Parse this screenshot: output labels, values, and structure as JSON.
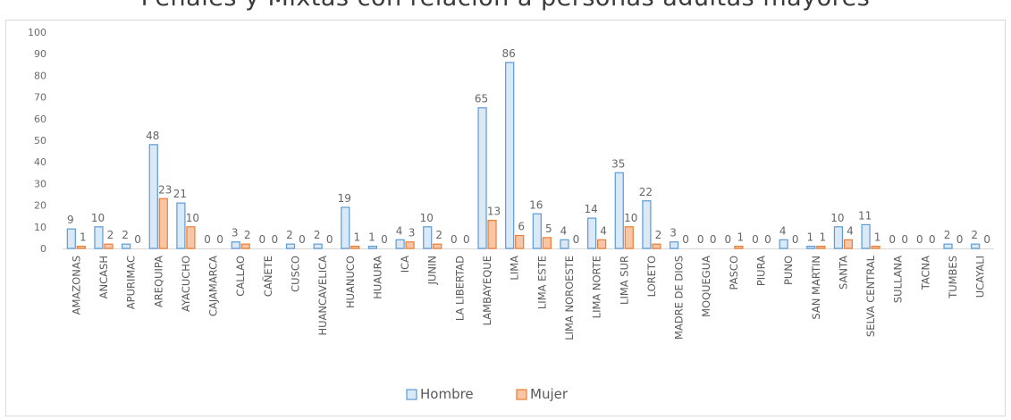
{
  "chart_data": {
    "type": "bar",
    "title": "Penales y Mixtas con relación a personas adultas mayores",
    "categories": [
      "AMAZONAS",
      "ANCASH",
      "APURIMAC",
      "AREQUIPA",
      "AYACUCHO",
      "CAJAMARCA",
      "CALLAO",
      "CAÑETE",
      "CUSCO",
      "HUANCAVELICA",
      "HUANUCO",
      "HUAURA",
      "ICA",
      "JUNIN",
      "LA LIBERTAD",
      "LAMBAYEQUE",
      "LIMA",
      "LIMA ESTE",
      "LIMA NOROESTE",
      "LIMA NORTE",
      "LIMA SUR",
      "LORETO",
      "MADRE DE DIOS",
      "MOQUEGUA",
      "PASCO",
      "PIURA",
      "PUNO",
      "SAN MARTIN",
      "SANTA",
      "SELVA CENTRAL",
      "SULLANA",
      "TACNA",
      "TUMBES",
      "UCAYALI"
    ],
    "series": [
      {
        "name": "Hombre",
        "color": "#5b9bd5",
        "fill": "#dbe8f6",
        "values": [
          9,
          10,
          2,
          48,
          21,
          0,
          3,
          0,
          2,
          2,
          19,
          1,
          4,
          10,
          0,
          65,
          86,
          16,
          4,
          14,
          35,
          22,
          3,
          0,
          0,
          0,
          4,
          1,
          10,
          11,
          0,
          0,
          2,
          2
        ]
      },
      {
        "name": "Mujer",
        "color": "#ed7d31",
        "fill": "#f6c6a6",
        "values": [
          1,
          2,
          0,
          23,
          10,
          0,
          2,
          0,
          0,
          0,
          1,
          0,
          3,
          2,
          0,
          13,
          6,
          5,
          0,
          4,
          10,
          2,
          0,
          0,
          1,
          0,
          0,
          1,
          4,
          1,
          0,
          0,
          0,
          0
        ]
      }
    ],
    "ylim": [
      0,
      100
    ],
    "yticks": [
      0,
      10,
      20,
      30,
      40,
      50,
      60,
      70,
      80,
      90,
      100
    ],
    "grid": false,
    "legend": "bottom"
  }
}
